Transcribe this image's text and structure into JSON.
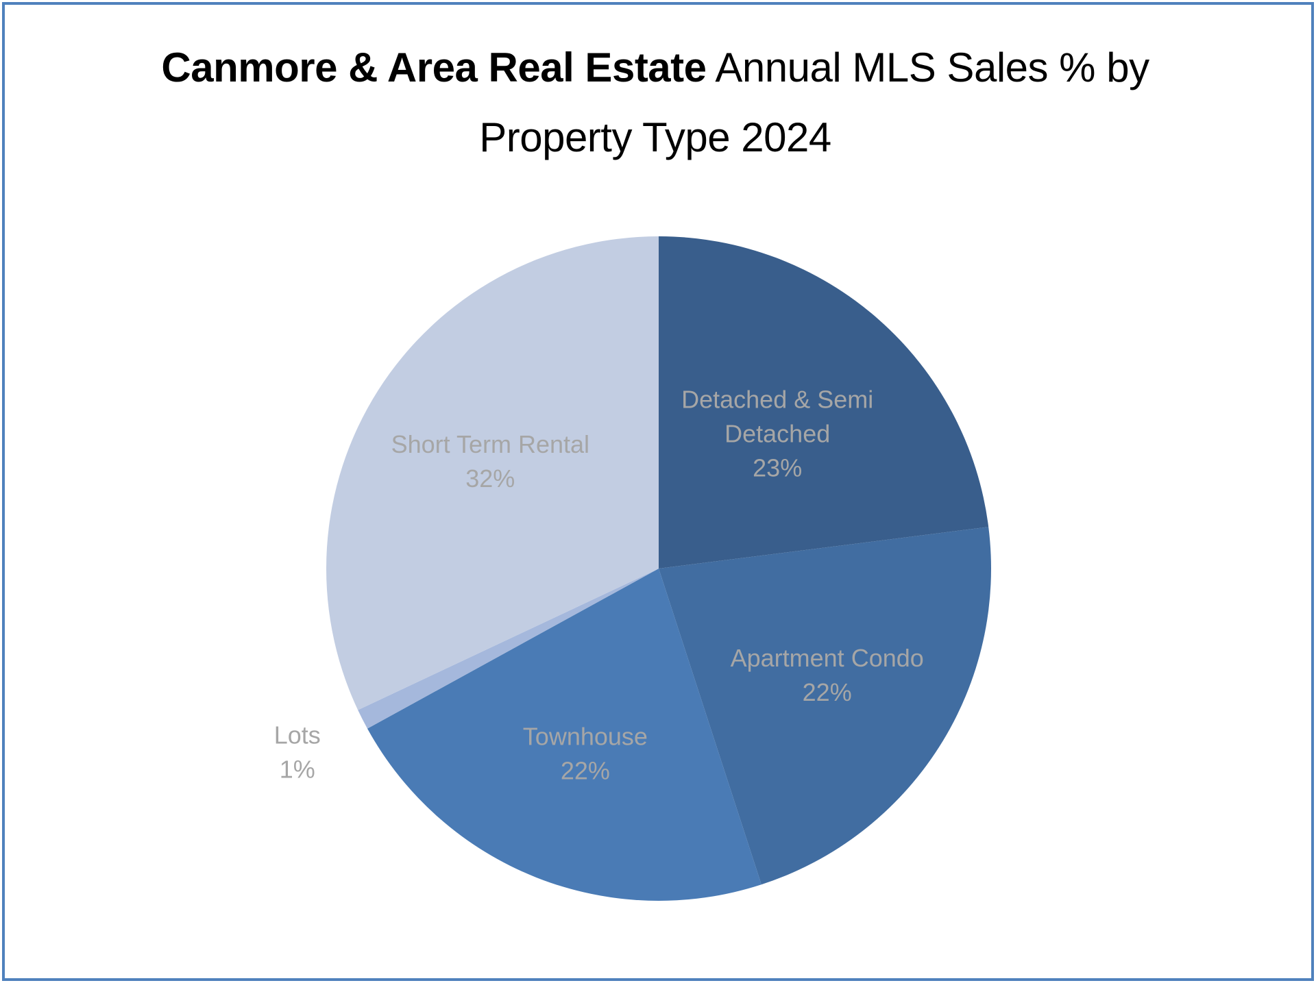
{
  "chart_data": {
    "type": "pie",
    "title_bold": "Canmore & Area Real Estate",
    "title_rest_line1": "Annual MLS Sales % by",
    "title_line2": "Property Type 2024",
    "slices": [
      {
        "name": "Detached & Semi Detached",
        "label_lines": [
          "Detached & Semi",
          "Detached"
        ],
        "value": 23,
        "value_label": "23%",
        "color": "#395e8c"
      },
      {
        "name": "Apartment Condo",
        "label_lines": [
          "Apartment Condo"
        ],
        "value": 22,
        "value_label": "22%",
        "color": "#416da1"
      },
      {
        "name": "Townhouse",
        "label_lines": [
          "Townhouse"
        ],
        "value": 22,
        "value_label": "22%",
        "color": "#4a7bb5"
      },
      {
        "name": "Lots",
        "label_lines": [
          "Lots"
        ],
        "value": 1,
        "value_label": "1%",
        "color": "#a5b8dc"
      },
      {
        "name": "Short Term Rental",
        "label_lines": [
          "Short Term Rental"
        ],
        "value": 32,
        "value_label": "32%",
        "color": "#c2cde2"
      }
    ],
    "start_angle_deg": 0,
    "direction": "clockwise",
    "legend": "none",
    "label_color": "#a6a6a6",
    "border_color": "#4f81bd"
  }
}
